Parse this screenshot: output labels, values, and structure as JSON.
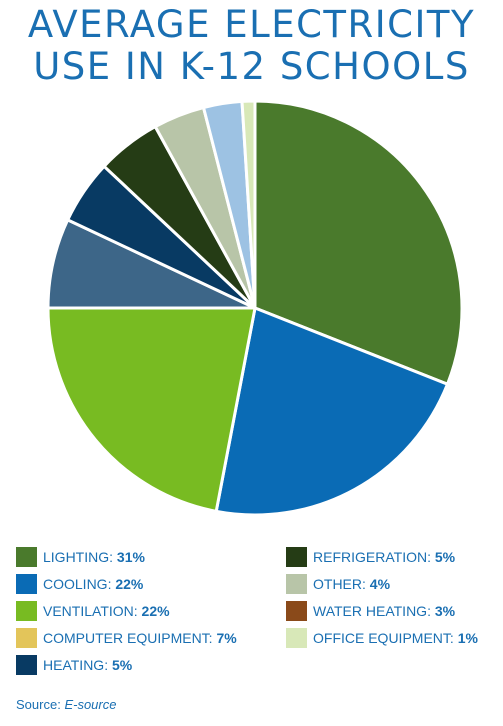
{
  "chart_data": {
    "type": "pie",
    "title_lines": [
      "AVERAGE ELECTRICITY",
      "USE IN K-12 SCHOOLS"
    ],
    "slices": [
      {
        "label": "LIGHTING:",
        "pct": "31%",
        "value": 31,
        "color": "#4a7a2c"
      },
      {
        "label": "COOLING:",
        "pct": "22%",
        "value": 22,
        "color": "#0a6bb5"
      },
      {
        "label": "VENTILATION:",
        "pct": "22%",
        "value": 22,
        "color": "#78bb22"
      },
      {
        "label": "COMPUTER EQUIPMENT:",
        "pct": "7%",
        "value": 7,
        "color": "#3d6688",
        "legend_color": "#e3c55a"
      },
      {
        "label": "HEATING:",
        "pct": "5%",
        "value": 5,
        "color": "#083a63"
      },
      {
        "label": "REFRIGERATION:",
        "pct": "5%",
        "value": 5,
        "color": "#253c15"
      },
      {
        "label": "OTHER:",
        "pct": "4%",
        "value": 4,
        "color": "#b8c5a8"
      },
      {
        "label": "WATER HEATING:",
        "pct": "3%",
        "value": 3,
        "color": "#9dc2e3",
        "legend_color": "#8a4a1a"
      },
      {
        "label": "OFFICE EQUIPMENT:",
        "pct": "1%",
        "value": 1,
        "color": "#d8e8b8"
      }
    ]
  },
  "legend_order": [
    0,
    5,
    1,
    6,
    2,
    7,
    3,
    8,
    4
  ],
  "source": {
    "prefix": "Source:",
    "name": "E-source"
  }
}
